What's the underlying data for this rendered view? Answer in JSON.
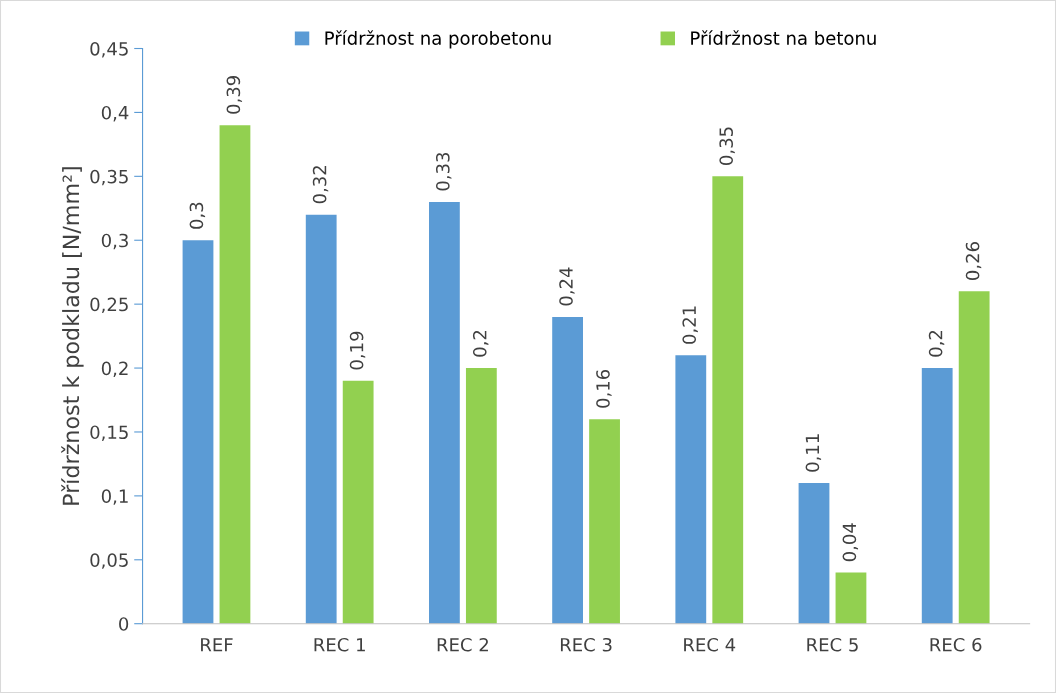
{
  "chart_data": {
    "type": "bar",
    "ylabel": "Přídržnost k podkladu [N/mm²]",
    "categories": [
      "REF",
      "REC 1",
      "REC 2",
      "REC 3",
      "REC 4",
      "REC 5",
      "REC 6"
    ],
    "series": [
      {
        "name": "Přídržnost na porobetonu",
        "color": "#5b9bd5",
        "values": [
          0.3,
          0.32,
          0.33,
          0.24,
          0.21,
          0.11,
          0.2
        ],
        "value_labels": [
          "0,3",
          "0,32",
          "0,33",
          "0,24",
          "0,21",
          "0,11",
          "0,2"
        ]
      },
      {
        "name": "Přídržnost na betonu",
        "color": "#92d050",
        "values": [
          0.39,
          0.19,
          0.2,
          0.16,
          0.35,
          0.04,
          0.26
        ],
        "value_labels": [
          "0,39",
          "0,19",
          "0,2",
          "0,16",
          "0,35",
          "0,04",
          "0,26"
        ]
      }
    ],
    "ylim": [
      0,
      0.45
    ],
    "yticks": [
      {
        "value": 0,
        "label": "0"
      },
      {
        "value": 0.05,
        "label": "0,05"
      },
      {
        "value": 0.1,
        "label": "0,1"
      },
      {
        "value": 0.15,
        "label": "0,15"
      },
      {
        "value": 0.2,
        "label": "0,2"
      },
      {
        "value": 0.25,
        "label": "0,25"
      },
      {
        "value": 0.3,
        "label": "0,3"
      },
      {
        "value": 0.35,
        "label": "0,35"
      },
      {
        "value": 0.4,
        "label": "0,4"
      },
      {
        "value": 0.45,
        "label": "0,45"
      }
    ],
    "grid": false,
    "legend": "top"
  }
}
